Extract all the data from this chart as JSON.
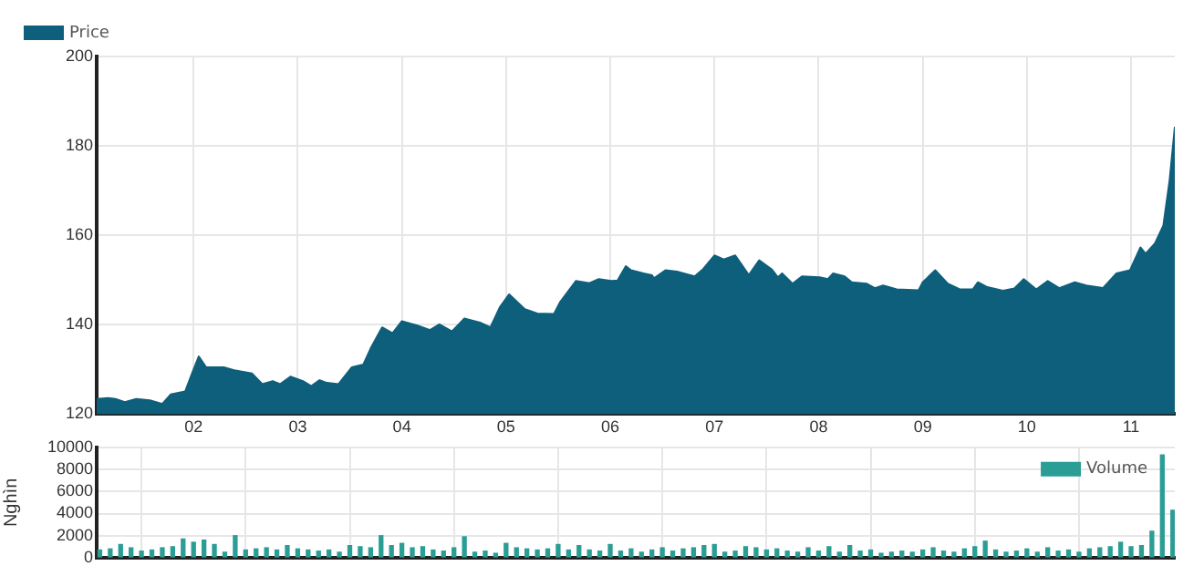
{
  "chart_data": [
    {
      "type": "area",
      "legend": "top left",
      "grid": true,
      "xlim": [
        1.07,
        11.42
      ],
      "xticks": [
        {
          "value": 2,
          "label": "02"
        },
        {
          "value": 3,
          "label": "03"
        },
        {
          "value": 4,
          "label": "04"
        },
        {
          "value": 5,
          "label": "05"
        },
        {
          "value": 6,
          "label": "06"
        },
        {
          "value": 7,
          "label": "07"
        },
        {
          "value": 8,
          "label": "08"
        },
        {
          "value": 9,
          "label": "09"
        },
        {
          "value": 10,
          "label": "10"
        },
        {
          "value": 11,
          "label": "11"
        }
      ],
      "ylim": [
        120,
        200
      ],
      "yticks": [
        120,
        140,
        160,
        180,
        200
      ],
      "series": [
        {
          "name": "Price",
          "color": "#0e5f7b",
          "x": [
            1.07,
            1.18,
            1.25,
            1.34,
            1.45,
            1.58,
            1.7,
            1.78,
            1.92,
            1.99,
            2.05,
            2.12,
            2.29,
            2.39,
            2.56,
            2.66,
            2.76,
            2.83,
            2.93,
            3.05,
            3.13,
            3.21,
            3.28,
            3.39,
            3.52,
            3.63,
            3.7,
            3.81,
            3.91,
            4.0,
            4.15,
            4.27,
            4.36,
            4.48,
            4.6,
            4.75,
            4.85,
            4.94,
            5.03,
            5.18,
            5.3,
            5.46,
            5.52,
            5.67,
            5.8,
            5.89,
            6.01,
            6.07,
            6.15,
            6.2,
            6.32,
            6.4,
            6.42,
            6.53,
            6.64,
            6.81,
            6.89,
            7.0,
            7.09,
            7.2,
            7.26,
            7.33,
            7.43,
            7.55,
            7.61,
            7.65,
            7.75,
            7.84,
            8.01,
            8.09,
            8.14,
            8.25,
            8.32,
            8.46,
            8.54,
            8.62,
            8.75,
            8.96,
            9.0,
            9.12,
            9.24,
            9.36,
            9.48,
            9.53,
            9.62,
            9.77,
            9.88,
            9.97,
            10.09,
            10.2,
            10.31,
            10.46,
            10.57,
            10.73,
            10.86,
            10.99,
            11.09,
            11.14,
            11.23,
            11.31,
            11.37,
            11.42
          ],
          "values": [
            123.4,
            123.6,
            123.4,
            122.7,
            123.4,
            123.1,
            122.3,
            124.4,
            125.1,
            129.4,
            132.9,
            130.5,
            130.5,
            129.8,
            129.1,
            126.7,
            127.4,
            126.7,
            128.4,
            127.4,
            126.3,
            127.6,
            127.0,
            126.7,
            130.5,
            131.1,
            134.7,
            139.4,
            138.1,
            140.8,
            139.8,
            138.8,
            140.1,
            138.5,
            141.4,
            140.5,
            139.4,
            143.9,
            146.8,
            143.5,
            142.5,
            142.4,
            145.1,
            149.8,
            149.3,
            150.2,
            149.8,
            149.9,
            153.1,
            152.2,
            151.5,
            151.1,
            150.4,
            152.2,
            151.9,
            150.8,
            152.4,
            155.5,
            154.6,
            155.5,
            153.5,
            151.1,
            154.4,
            152.4,
            150.6,
            151.5,
            149.2,
            150.8,
            150.6,
            150.2,
            151.5,
            150.8,
            149.5,
            149.2,
            148.2,
            148.8,
            147.9,
            147.7,
            149.5,
            152.2,
            149.2,
            147.9,
            147.9,
            149.5,
            148.4,
            147.6,
            148.1,
            150.2,
            147.9,
            149.8,
            148.2,
            149.5,
            148.8,
            148.2,
            151.5,
            152.2,
            157.3,
            155.9,
            158.2,
            162.2,
            172.3,
            184.3
          ]
        }
      ]
    },
    {
      "type": "bar",
      "legend": "top right",
      "grid": true,
      "tick_labels": "y",
      "ylabel": "Nghìn",
      "xlim": [
        1.07,
        11.42
      ],
      "xticks": [
        {
          "value": 2,
          "label": null
        },
        {
          "value": 3,
          "label": null
        },
        {
          "value": 4,
          "label": null
        },
        {
          "value": 5,
          "label": null
        },
        {
          "value": 6,
          "label": null
        },
        {
          "value": 7,
          "label": null
        },
        {
          "value": 8,
          "label": null
        },
        {
          "value": 9,
          "label": null
        },
        {
          "value": 10,
          "label": null
        },
        {
          "value": 11,
          "label": null
        }
      ],
      "ylim": [
        0,
        10000
      ],
      "yticks": [
        0,
        2000,
        4000,
        6000,
        8000,
        10000
      ],
      "series": [
        {
          "name": "Volume",
          "color": "#2a9d95",
          "x": [
            1.1,
            1.2,
            1.3,
            1.4,
            1.5,
            1.6,
            1.7,
            1.8,
            1.9,
            2.0,
            2.1,
            2.2,
            2.3,
            2.4,
            2.5,
            2.6,
            2.7,
            2.8,
            2.9,
            3.0,
            3.1,
            3.2,
            3.3,
            3.4,
            3.5,
            3.6,
            3.7,
            3.8,
            3.9,
            4.0,
            4.1,
            4.2,
            4.3,
            4.4,
            4.5,
            4.6,
            4.7,
            4.8,
            4.9,
            5.0,
            5.1,
            5.2,
            5.3,
            5.4,
            5.5,
            5.6,
            5.7,
            5.8,
            5.9,
            6.0,
            6.1,
            6.2,
            6.3,
            6.4,
            6.5,
            6.6,
            6.7,
            6.8,
            6.9,
            7.0,
            7.1,
            7.2,
            7.3,
            7.4,
            7.5,
            7.6,
            7.7,
            7.8,
            7.9,
            8.0,
            8.1,
            8.2,
            8.3,
            8.4,
            8.5,
            8.6,
            8.7,
            8.8,
            8.9,
            9.0,
            9.1,
            9.2,
            9.3,
            9.4,
            9.5,
            9.6,
            9.7,
            9.8,
            9.9,
            10.0,
            10.1,
            10.2,
            10.3,
            10.4,
            10.5,
            10.6,
            10.7,
            10.8,
            10.9,
            11.0,
            11.1,
            11.2,
            11.3,
            11.4
          ],
          "values": [
            700,
            800,
            1200,
            900,
            600,
            700,
            900,
            1000,
            1700,
            1400,
            1600,
            1200,
            500,
            2000,
            700,
            800,
            900,
            700,
            1100,
            800,
            700,
            600,
            700,
            500,
            1100,
            1000,
            900,
            2000,
            1100,
            1300,
            900,
            1000,
            700,
            600,
            900,
            1900,
            500,
            600,
            400,
            1300,
            900,
            800,
            700,
            800,
            1200,
            700,
            1100,
            700,
            600,
            1200,
            600,
            800,
            500,
            700,
            900,
            600,
            800,
            900,
            1100,
            1200,
            500,
            600,
            1000,
            900,
            700,
            800,
            600,
            500,
            900,
            600,
            1000,
            500,
            1100,
            600,
            700,
            400,
            500,
            600,
            500,
            700,
            900,
            600,
            500,
            800,
            1000,
            1500,
            700,
            500,
            600,
            800,
            500,
            900,
            600,
            700,
            500,
            800,
            900,
            1000,
            1400,
            1000,
            1100,
            2400,
            9300,
            4300
          ]
        }
      ]
    }
  ]
}
